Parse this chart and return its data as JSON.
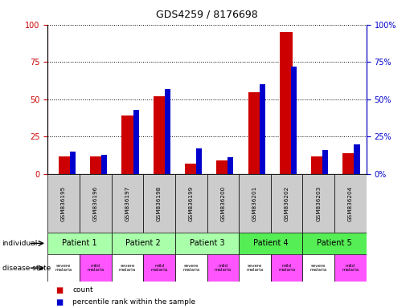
{
  "title": "GDS4259 / 8176698",
  "samples": [
    "GSM836195",
    "GSM836196",
    "GSM836197",
    "GSM836198",
    "GSM836199",
    "GSM836200",
    "GSM836201",
    "GSM836202",
    "GSM836203",
    "GSM836204"
  ],
  "red_values": [
    12,
    12,
    39,
    52,
    7,
    9,
    55,
    95,
    12,
    14
  ],
  "blue_values": [
    15,
    13,
    43,
    57,
    17,
    11,
    60,
    72,
    16,
    20
  ],
  "patients": [
    {
      "label": "Patient 1",
      "cols": [
        0,
        1
      ]
    },
    {
      "label": "Patient 2",
      "cols": [
        2,
        3
      ]
    },
    {
      "label": "Patient 3",
      "cols": [
        4,
        5
      ]
    },
    {
      "label": "Patient 4",
      "cols": [
        6,
        7
      ]
    },
    {
      "label": "Patient 5",
      "cols": [
        8,
        9
      ]
    }
  ],
  "disease_states": [
    "severe\nmalaria",
    "mild\nmalaria",
    "severe\nmalaria",
    "mild\nmalaria",
    "severe\nmalaria",
    "mild\nmalaria",
    "severe\nmalaria",
    "mild\nmalaria",
    "severe\nmalaria",
    "mild\nmalaria"
  ],
  "severe_color": "#ffffff",
  "mild_color": "#ff55ff",
  "patient_colors": [
    "#aaffaa",
    "#aaffaa",
    "#aaffaa",
    "#55ee55",
    "#55ee55"
  ],
  "sample_bg": "#cccccc",
  "ylim_left": [
    0,
    100
  ],
  "ylim_right": [
    0,
    100
  ],
  "yticks": [
    0,
    25,
    50,
    75,
    100
  ],
  "legend_count_color": "#cc0000",
  "legend_pct_color": "#0000cc",
  "bar_red": "#cc0000",
  "bar_blue": "#0000cc"
}
